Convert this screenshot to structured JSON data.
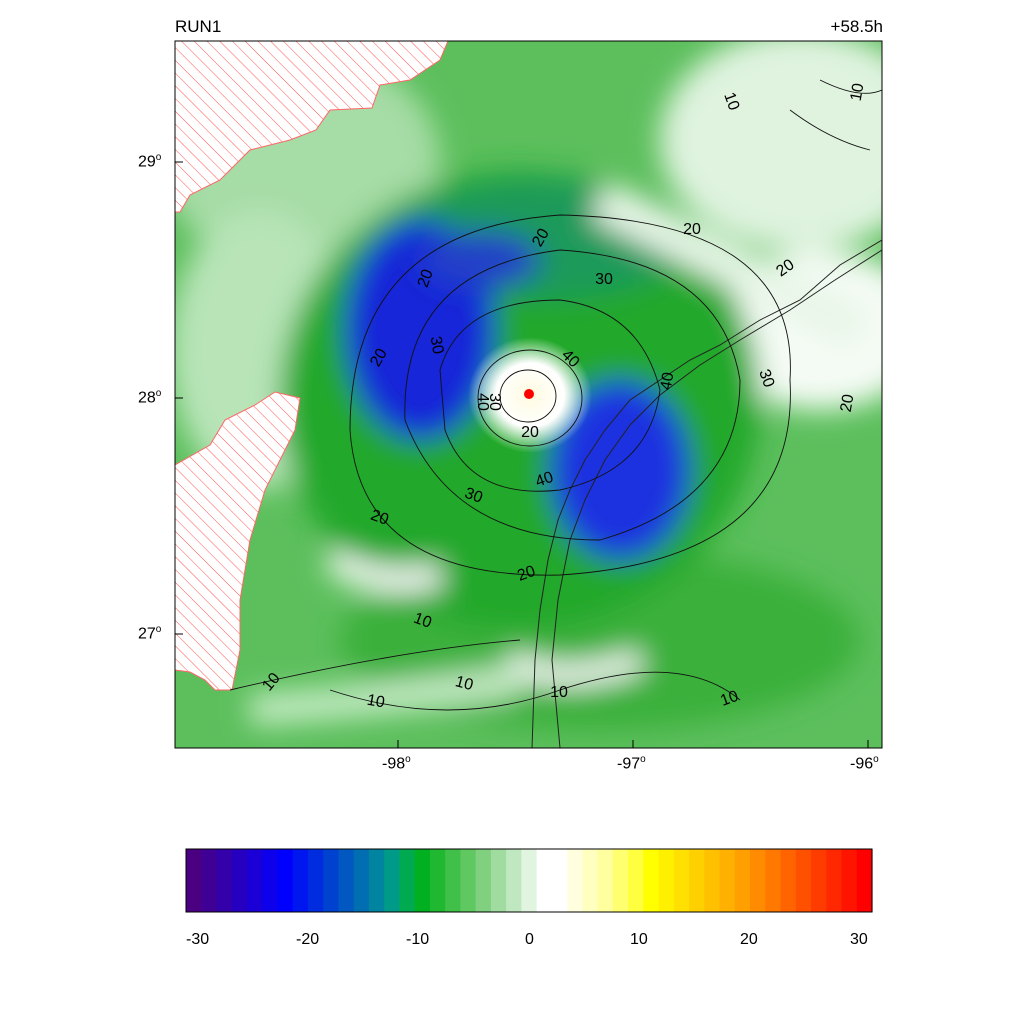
{
  "header": {
    "run_label": "RUN1",
    "time_label": "+58.5h"
  },
  "map": {
    "lat_ticks": [
      {
        "deg": "29",
        "sym": "o"
      },
      {
        "deg": "28",
        "sym": "o"
      },
      {
        "deg": "27",
        "sym": "o"
      }
    ],
    "lon_ticks": [
      {
        "deg": "-98",
        "sym": "o"
      },
      {
        "deg": "-97",
        "sym": "o"
      },
      {
        "deg": "-96",
        "sym": "o"
      }
    ],
    "contour_labels": [
      "10",
      "10",
      "20",
      "20",
      "20",
      "30",
      "20",
      "30",
      "20",
      "30",
      "40",
      "40",
      "40",
      "20",
      "40",
      "30",
      "20",
      "30",
      "20",
      "20",
      "10",
      "10",
      "10",
      "10",
      "10",
      "10"
    ],
    "storm_center_color": "#ff0000",
    "masked_hatch_color": "#ff4a4a"
  },
  "colorbar": {
    "min": -30,
    "max": 30,
    "tick_labels": [
      "-30",
      "-20",
      "-10",
      "0",
      "10",
      "20",
      "30"
    ],
    "colors": [
      "#4b0082",
      "#3f0096",
      "#3300aa",
      "#2600c0",
      "#1a00d6",
      "#0d00ea",
      "#0000ff",
      "#0016f0",
      "#002ce0",
      "#0042d0",
      "#0058c0",
      "#006eb0",
      "#0084a0",
      "#009a88",
      "#00aa50",
      "#00b020",
      "#20b830",
      "#40c048",
      "#60c860",
      "#80d080",
      "#a0dca0",
      "#c0e8c0",
      "#e0f4e0",
      "#ffffff",
      "#ffffff",
      "#ffffe0",
      "#ffffc0",
      "#ffffa0",
      "#ffff70",
      "#ffff40",
      "#ffff00",
      "#fff000",
      "#ffe000",
      "#ffd000",
      "#ffc000",
      "#ffb000",
      "#ffa000",
      "#ff8c00",
      "#ff7800",
      "#ff6400",
      "#ff5000",
      "#ff3c00",
      "#ff2800",
      "#ff1400",
      "#ff0000"
    ]
  }
}
